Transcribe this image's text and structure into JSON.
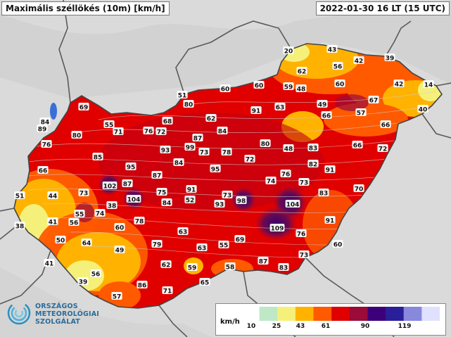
{
  "header": {
    "title": "Maximális széllökés (10m) [km/h]",
    "datetime": "2022-01-30 16 LT (15 UTC)"
  },
  "logo": {
    "line1": "ORSZÁGOS",
    "line2": "METEOROLÓGIAI",
    "line3": "SZOLGÁLAT"
  },
  "legend": {
    "unit": "km/h",
    "ticks": [
      "10",
      "25",
      "43",
      "61",
      "90",
      "119"
    ],
    "colors": [
      "#ffffff",
      "#bfe8c6",
      "#f5f07a",
      "#ffb300",
      "#ff5a00",
      "#e00000",
      "#9a0b3a",
      "#3c007a",
      "#2a1f9a",
      "#8888dd",
      "#e0e0ff"
    ]
  },
  "map": {
    "background_color": "#d8d8d8",
    "border_color": "#5a5a5a",
    "stations": [
      {
        "v": "20"
      },
      {
        "v": "43"
      },
      {
        "v": "39"
      },
      {
        "v": "56"
      },
      {
        "v": "42"
      },
      {
        "v": "62"
      },
      {
        "v": "14"
      },
      {
        "v": "42"
      },
      {
        "v": "60"
      },
      {
        "v": "59"
      },
      {
        "v": "48"
      },
      {
        "v": "60"
      },
      {
        "v": "60"
      },
      {
        "v": "40"
      },
      {
        "v": "67"
      },
      {
        "v": "57"
      },
      {
        "v": "49"
      },
      {
        "v": "51"
      },
      {
        "v": "80"
      },
      {
        "v": "69"
      },
      {
        "v": "91"
      },
      {
        "v": "63"
      },
      {
        "v": "62"
      },
      {
        "v": "66"
      },
      {
        "v": "66"
      },
      {
        "v": "84"
      },
      {
        "v": "89"
      },
      {
        "v": "55"
      },
      {
        "v": "71"
      },
      {
        "v": "76"
      },
      {
        "v": "72"
      },
      {
        "v": "68"
      },
      {
        "v": "84"
      },
      {
        "v": "80"
      },
      {
        "v": "87"
      },
      {
        "v": "99"
      },
      {
        "v": "73"
      },
      {
        "v": "78"
      },
      {
        "v": "80"
      },
      {
        "v": "48"
      },
      {
        "v": "83"
      },
      {
        "v": "66"
      },
      {
        "v": "72"
      },
      {
        "v": "76"
      },
      {
        "v": "93"
      },
      {
        "v": "85"
      },
      {
        "v": "84"
      },
      {
        "v": "72"
      },
      {
        "v": "82"
      },
      {
        "v": "91"
      },
      {
        "v": "66"
      },
      {
        "v": "95"
      },
      {
        "v": "95"
      },
      {
        "v": "87"
      },
      {
        "v": "76"
      },
      {
        "v": "74"
      },
      {
        "v": "73"
      },
      {
        "v": "44"
      },
      {
        "v": "73"
      },
      {
        "v": "102"
      },
      {
        "v": "87"
      },
      {
        "v": "91"
      },
      {
        "v": "73"
      },
      {
        "v": "83"
      },
      {
        "v": "70"
      },
      {
        "v": "51"
      },
      {
        "v": "75"
      },
      {
        "v": "104"
      },
      {
        "v": "84"
      },
      {
        "v": "52"
      },
      {
        "v": "93"
      },
      {
        "v": "98"
      },
      {
        "v": "104"
      },
      {
        "v": "38"
      },
      {
        "v": "55"
      },
      {
        "v": "74"
      },
      {
        "v": "38"
      },
      {
        "v": "41"
      },
      {
        "v": "56"
      },
      {
        "v": "78"
      },
      {
        "v": "60"
      },
      {
        "v": "109"
      },
      {
        "v": "91"
      },
      {
        "v": "63"
      },
      {
        "v": "76"
      },
      {
        "v": "50"
      },
      {
        "v": "64"
      },
      {
        "v": "69"
      },
      {
        "v": "79"
      },
      {
        "v": "55"
      },
      {
        "v": "60"
      },
      {
        "v": "49"
      },
      {
        "v": "63"
      },
      {
        "v": "73"
      },
      {
        "v": "41"
      },
      {
        "v": "62"
      },
      {
        "v": "87"
      },
      {
        "v": "59"
      },
      {
        "v": "58"
      },
      {
        "v": "83"
      },
      {
        "v": "56"
      },
      {
        "v": "65"
      },
      {
        "v": "39"
      },
      {
        "v": "86"
      },
      {
        "v": "71"
      },
      {
        "v": "57"
      }
    ]
  }
}
